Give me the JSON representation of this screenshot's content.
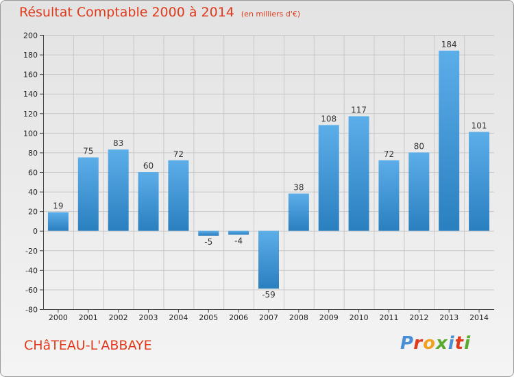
{
  "title": "Résultat Comptable 2000 à 2014",
  "unit_note": "(en milliers d'€)",
  "commune": "CHâTEAU-L'ABBAYE",
  "logo": {
    "text": "Proxiti",
    "colors": [
      "#4a8fd6",
      "#e0391b",
      "#f0a21f",
      "#5aaa2f",
      "#4a8fd6",
      "#e0391b",
      "#5aaa2f"
    ]
  },
  "colors": {
    "title": "#e0391b",
    "bar_light": "#5caee9",
    "bar_dark": "#2a7fbf",
    "grid": "#c9c9c9",
    "axis": "#444444"
  },
  "chart_data": {
    "type": "bar",
    "title": "Résultat Comptable 2000 à 2014",
    "subtitle": "(en milliers d'€)",
    "xlabel": "",
    "ylabel": "",
    "categories": [
      "2000",
      "2001",
      "2002",
      "2003",
      "2004",
      "2005",
      "2006",
      "2007",
      "2008",
      "2009",
      "2010",
      "2011",
      "2012",
      "2013",
      "2014"
    ],
    "values": [
      19,
      75,
      83,
      60,
      72,
      -5,
      -4,
      -59,
      38,
      108,
      117,
      72,
      80,
      184,
      101
    ],
    "labels": [
      "19",
      "75",
      "83",
      "60",
      "72",
      "-5",
      "-4",
      "-59",
      "38",
      "108",
      "117",
      "72",
      "80",
      "184",
      "101"
    ],
    "ylim": [
      -80,
      200
    ],
    "yticks": [
      -80,
      -60,
      -40,
      -20,
      0,
      20,
      40,
      60,
      80,
      100,
      120,
      140,
      160,
      180,
      200
    ],
    "grid": true
  }
}
